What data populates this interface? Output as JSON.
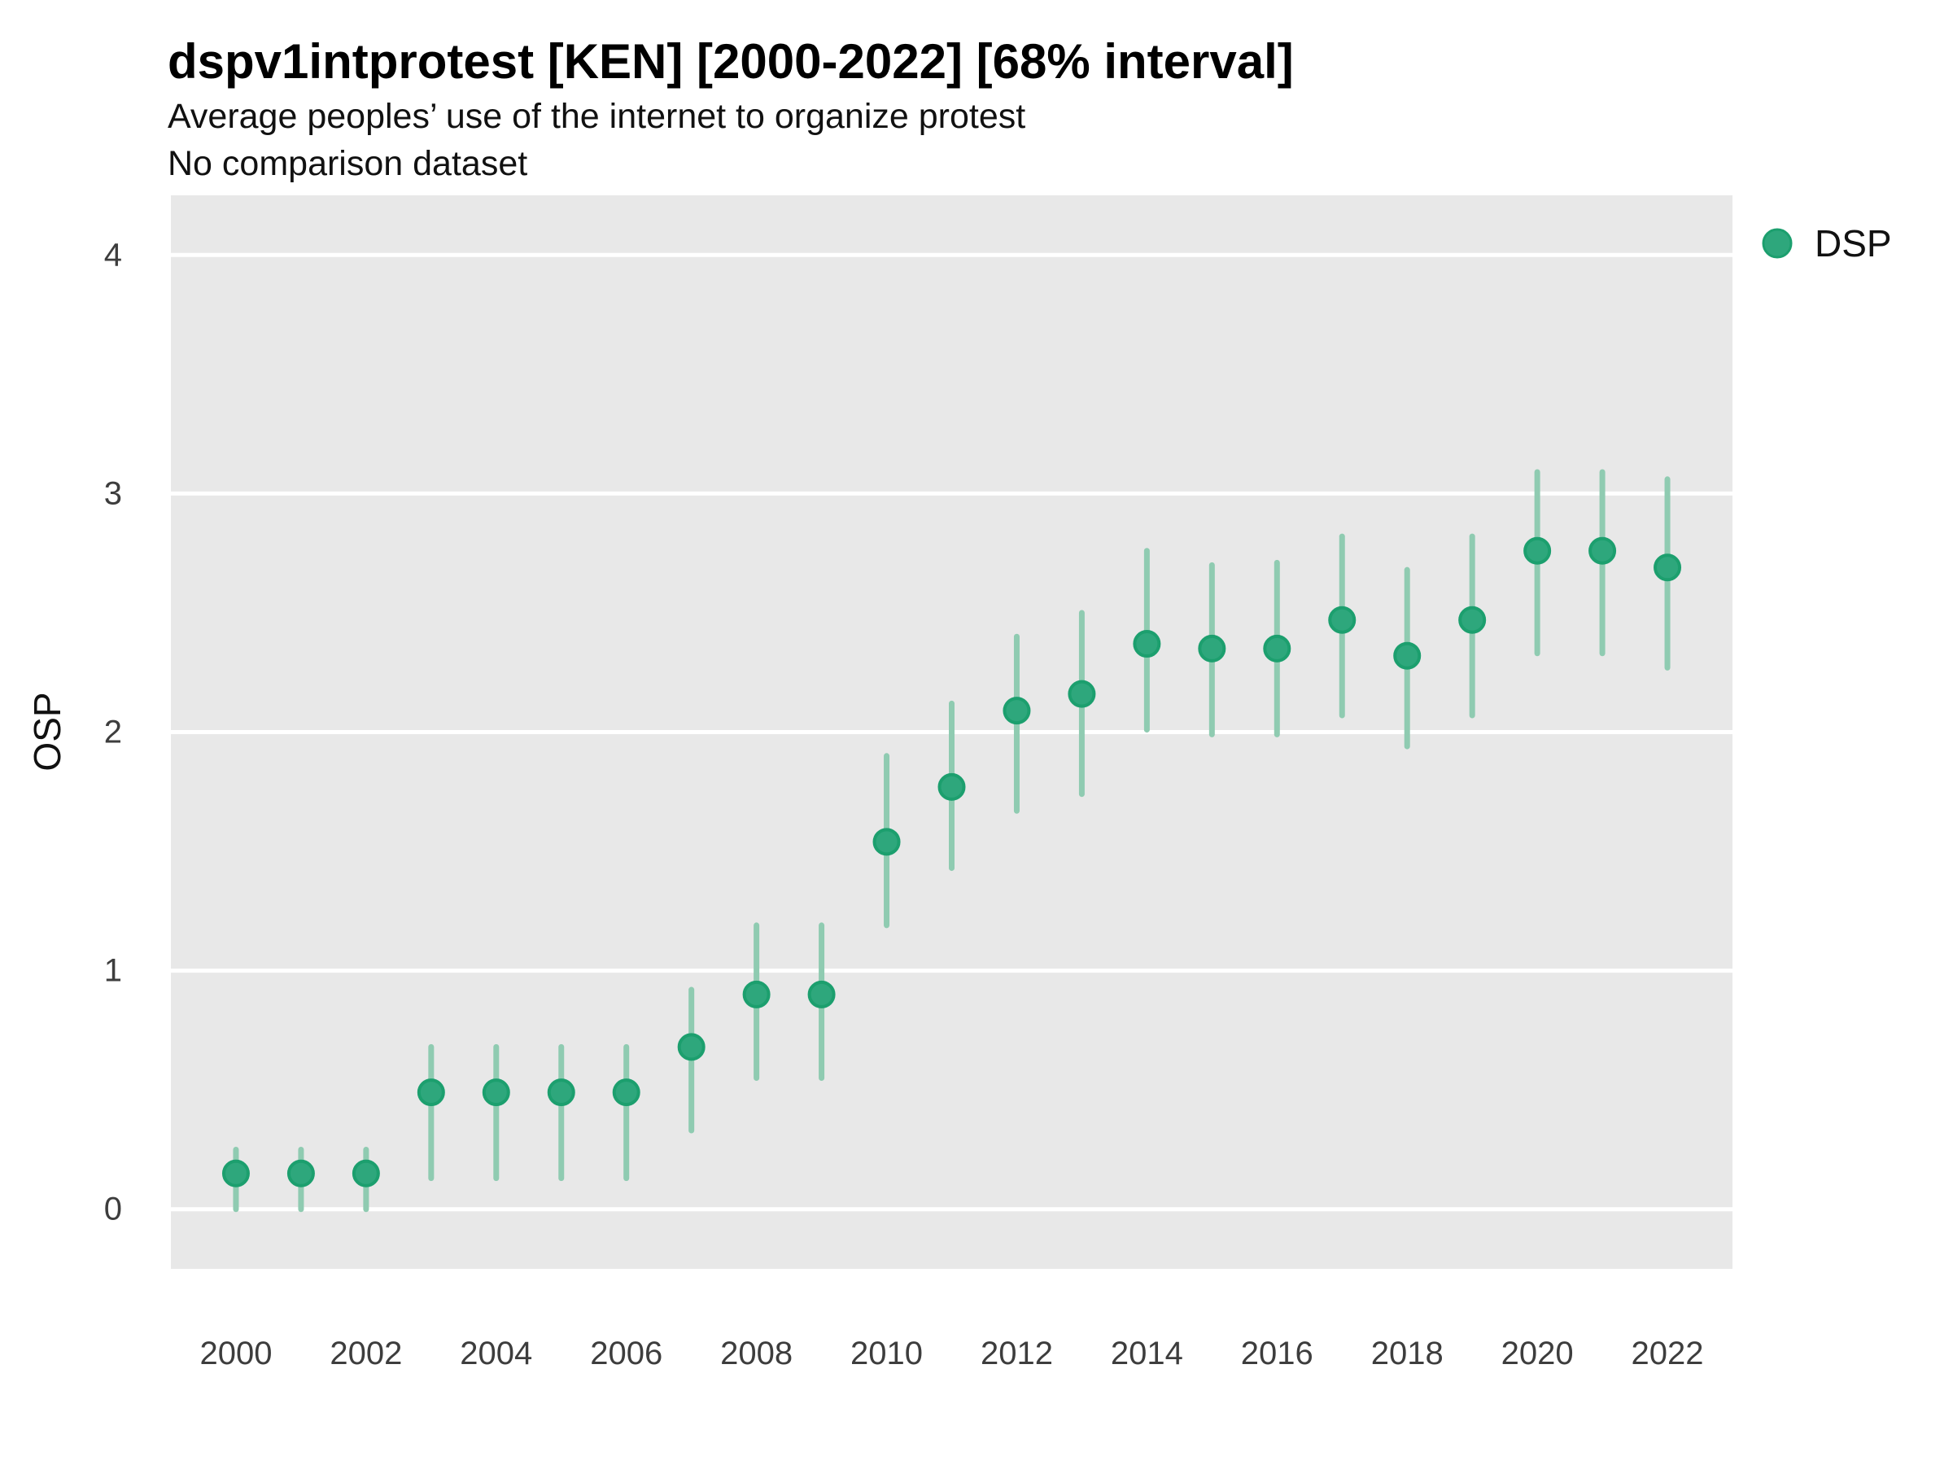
{
  "header": {
    "title": "dspv1intprotest [KEN] [2000-2022] [68% interval]",
    "subtitle": "Average peoples’ use of the internet to organize protest",
    "note": "No comparison dataset"
  },
  "legend": {
    "position": "right",
    "entries": [
      {
        "label": "DSP",
        "marker": "circle-icon"
      }
    ]
  },
  "colors": {
    "panel_background": "#e8e8e8",
    "gridline": "#ffffff",
    "point_fill": "#2ea77c",
    "point_stroke": "#1c9f6e",
    "error_bar": "#8fcbb1",
    "title_text": "#000000",
    "tick_text": "#3d3d3d"
  },
  "chart_data": {
    "type": "scatter",
    "title": "dspv1intprotest [KEN] [2000-2022] [68% interval]",
    "subtitle": "Average peoples’ use of the internet to organize protest",
    "note": "No comparison dataset",
    "xlabel": "",
    "ylabel": "OSP",
    "interval": "68%",
    "legend_position": "right",
    "grid": "major-white-on-gray",
    "xlim": [
      1999,
      2023
    ],
    "ylim": [
      -0.25,
      4.25
    ],
    "x_ticks": [
      2000,
      2002,
      2004,
      2006,
      2008,
      2010,
      2012,
      2014,
      2016,
      2018,
      2020,
      2022
    ],
    "y_ticks": [
      0,
      1,
      2,
      3,
      4
    ],
    "series": [
      {
        "name": "DSP",
        "x": [
          2000,
          2001,
          2002,
          2003,
          2004,
          2005,
          2006,
          2007,
          2008,
          2009,
          2010,
          2011,
          2012,
          2013,
          2014,
          2015,
          2016,
          2017,
          2018,
          2019,
          2020,
          2021,
          2022
        ],
        "y": [
          0.15,
          0.15,
          0.15,
          0.49,
          0.49,
          0.49,
          0.49,
          0.68,
          0.9,
          0.9,
          1.54,
          1.77,
          2.09,
          2.16,
          2.37,
          2.35,
          2.35,
          2.47,
          2.32,
          2.47,
          2.76,
          2.76,
          2.69
        ],
        "y_lo": [
          0.0,
          0.0,
          0.0,
          0.13,
          0.13,
          0.13,
          0.13,
          0.33,
          0.55,
          0.55,
          1.19,
          1.43,
          1.67,
          1.74,
          2.01,
          1.99,
          1.99,
          2.07,
          1.94,
          2.07,
          2.33,
          2.33,
          2.27
        ],
        "y_hi": [
          0.25,
          0.25,
          0.25,
          0.68,
          0.68,
          0.68,
          0.68,
          0.92,
          1.19,
          1.19,
          1.9,
          2.12,
          2.4,
          2.5,
          2.76,
          2.7,
          2.71,
          2.82,
          2.68,
          2.82,
          3.09,
          3.09,
          3.06
        ]
      }
    ]
  }
}
